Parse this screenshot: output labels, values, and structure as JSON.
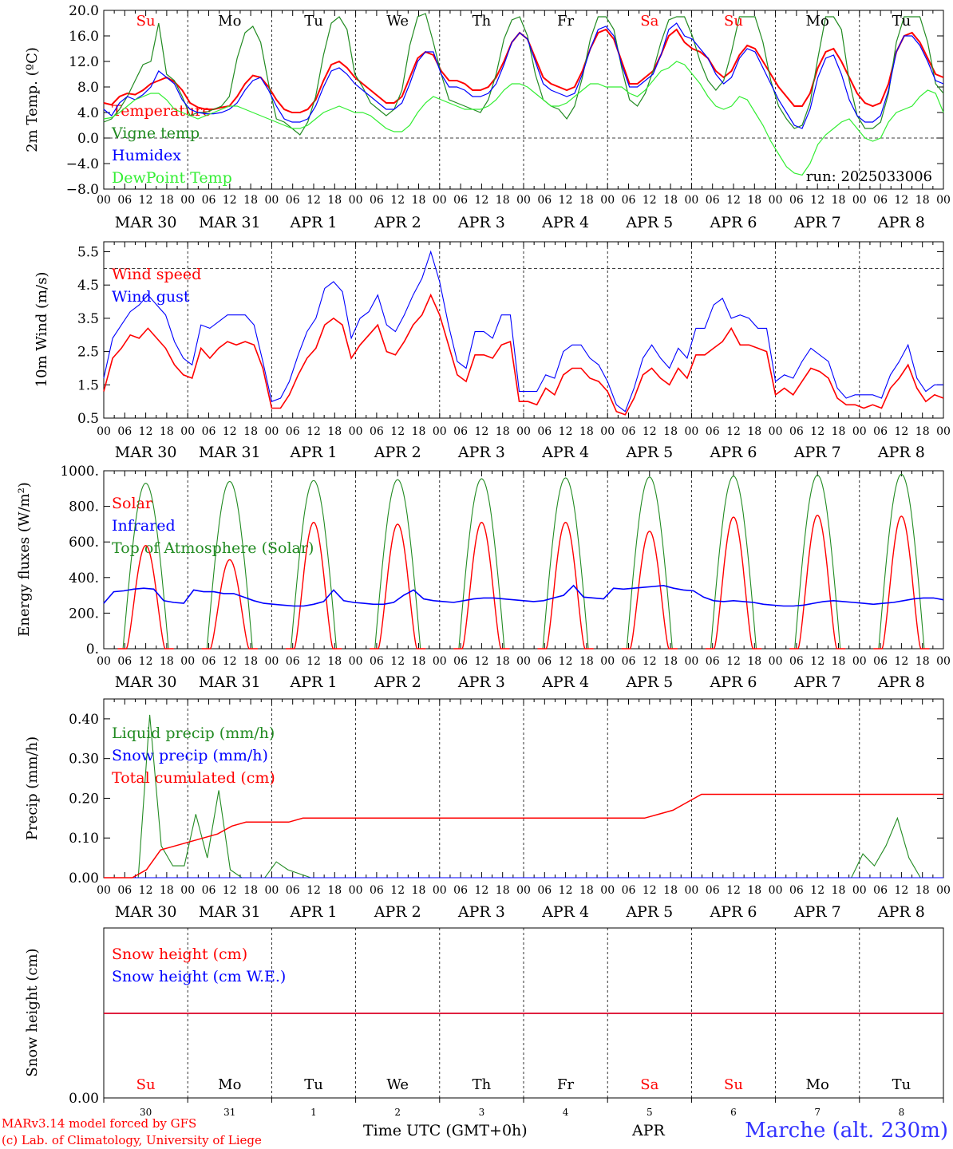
{
  "chart_data": [
    {
      "type": "line",
      "ylabel": "2m Temp. (ºC)",
      "ylim": [
        -8,
        20
      ],
      "yticks": [
        "20.0",
        "16.0",
        "12.0",
        "8.0",
        "4.0",
        "0.0",
        "−4.0",
        "−8.0"
      ],
      "x": "hours since MAR 30 00 UTC (3-hourly)",
      "dashed_line_y": 0,
      "run_label": "run: 2025033006",
      "series": [
        {
          "name": "Temperature",
          "color": "#ff0000",
          "values": [
            5.5,
            5.2,
            6.5,
            7.0,
            6.8,
            7.5,
            8.5,
            9.0,
            9.5,
            8.8,
            7.5,
            5.5,
            4.8,
            4.5,
            4.5,
            4.8,
            5.0,
            6.5,
            8.5,
            9.8,
            9.5,
            8.0,
            6.0,
            4.5,
            4.0,
            4.0,
            4.5,
            6.0,
            9.0,
            11.5,
            12.0,
            11.0,
            9.5,
            8.5,
            7.5,
            6.5,
            5.5,
            5.5,
            6.5,
            9.5,
            12.5,
            13.5,
            13.0,
            10.5,
            9.0,
            9.0,
            8.5,
            7.5,
            7.5,
            8.0,
            9.5,
            12.0,
            15.0,
            16.5,
            15.5,
            12.5,
            9.5,
            8.5,
            8.0,
            7.5,
            8.0,
            10.5,
            14.0,
            16.5,
            17.0,
            15.5,
            12.0,
            8.5,
            8.5,
            9.5,
            10.5,
            13.0,
            16.0,
            17.0,
            15.0,
            14.0,
            13.5,
            12.5,
            10.5,
            9.5,
            10.5,
            13.0,
            14.5,
            14.0,
            12.0,
            10.0,
            8.0,
            6.5,
            5.0,
            5.0,
            7.0,
            11.0,
            13.5,
            14.0,
            12.0,
            9.5,
            7.0,
            5.5,
            5.0,
            5.5,
            8.5,
            13.5,
            16.0,
            16.5,
            15.0,
            12.5,
            10.0,
            9.5
          ]
        },
        {
          "name": "Vigne temp",
          "color": "#228b22",
          "values": [
            2.5,
            3.0,
            4.5,
            6.5,
            9.0,
            11.5,
            12.0,
            18.0,
            10.0,
            9.0,
            6.5,
            3.5,
            4.0,
            4.0,
            4.5,
            5.0,
            6.5,
            12.5,
            16.5,
            17.5,
            15.0,
            8.5,
            3.0,
            2.5,
            1.5,
            0.5,
            2.5,
            6.5,
            13.0,
            18.0,
            19.0,
            17.0,
            10.0,
            8.0,
            5.5,
            4.5,
            3.5,
            4.5,
            7.5,
            14.5,
            19.0,
            19.5,
            15.0,
            10.0,
            6.0,
            5.5,
            5.0,
            4.5,
            4.0,
            6.0,
            10.0,
            15.5,
            18.5,
            19.0,
            16.0,
            10.0,
            6.0,
            5.0,
            4.5,
            3.0,
            5.0,
            9.5,
            15.5,
            19.0,
            19.0,
            17.0,
            11.0,
            6.0,
            5.0,
            7.0,
            10.5,
            15.0,
            18.5,
            19.0,
            19.0,
            16.0,
            12.0,
            9.0,
            7.5,
            9.0,
            13.5,
            19.0,
            19.0,
            19.0,
            15.0,
            9.0,
            5.0,
            3.0,
            1.5,
            2.0,
            5.5,
            12.5,
            19.0,
            19.0,
            17.0,
            9.0,
            3.5,
            1.5,
            1.5,
            2.5,
            7.0,
            15.0,
            19.0,
            19.0,
            19.0,
            15.0,
            8.5,
            7.0
          ]
        },
        {
          "name": "Humidex",
          "color": "#0000ff",
          "values": [
            4.5,
            3.5,
            5.5,
            6.5,
            6.0,
            6.8,
            8.0,
            10.5,
            9.5,
            8.5,
            6.0,
            4.5,
            4.0,
            3.8,
            3.8,
            4.0,
            4.5,
            5.5,
            7.5,
            9.0,
            9.5,
            7.5,
            5.0,
            3.0,
            2.5,
            2.5,
            3.0,
            5.0,
            8.0,
            10.5,
            11.0,
            10.0,
            8.5,
            7.5,
            6.5,
            5.5,
            4.5,
            4.5,
            5.5,
            8.5,
            12.0,
            13.5,
            13.5,
            10.0,
            8.0,
            8.0,
            7.5,
            6.5,
            6.5,
            7.0,
            8.5,
            11.5,
            15.0,
            16.5,
            15.5,
            12.0,
            8.5,
            7.5,
            7.0,
            6.5,
            7.0,
            10.0,
            14.0,
            17.0,
            17.5,
            16.0,
            11.5,
            8.0,
            8.0,
            9.0,
            10.0,
            13.0,
            17.0,
            18.0,
            16.0,
            15.5,
            14.0,
            12.5,
            10.0,
            8.5,
            9.5,
            12.5,
            14.0,
            13.5,
            11.0,
            8.5,
            6.0,
            4.0,
            2.0,
            1.5,
            4.5,
            9.5,
            12.5,
            13.0,
            10.0,
            6.0,
            3.5,
            2.5,
            2.5,
            3.5,
            7.5,
            13.5,
            16.0,
            16.0,
            14.5,
            12.0,
            9.0,
            8.5
          ]
        },
        {
          "name": "DewPoint Temp",
          "color": "#33ee33",
          "values": [
            3.0,
            3.2,
            4.0,
            5.0,
            6.0,
            6.5,
            7.0,
            7.0,
            6.0,
            4.5,
            4.0,
            3.5,
            3.0,
            3.5,
            4.0,
            4.5,
            5.0,
            5.0,
            4.5,
            4.0,
            3.5,
            3.0,
            2.5,
            2.0,
            1.5,
            1.5,
            2.0,
            3.0,
            4.0,
            4.5,
            5.0,
            4.5,
            4.0,
            4.0,
            3.5,
            2.5,
            1.5,
            1.0,
            1.0,
            2.0,
            4.0,
            5.5,
            6.5,
            6.0,
            5.5,
            5.0,
            4.5,
            4.5,
            4.5,
            5.0,
            6.0,
            7.5,
            8.5,
            8.5,
            8.0,
            7.0,
            6.0,
            5.0,
            5.0,
            5.5,
            6.5,
            7.5,
            8.5,
            8.5,
            8.0,
            8.0,
            8.0,
            7.0,
            6.5,
            7.5,
            9.0,
            10.5,
            11.0,
            12.0,
            11.5,
            10.0,
            8.5,
            6.5,
            5.0,
            4.5,
            5.0,
            6.5,
            6.0,
            4.0,
            2.0,
            -0.5,
            -2.5,
            -4.5,
            -5.5,
            -5.8,
            -4.0,
            -1.0,
            0.5,
            1.5,
            2.5,
            3.0,
            1.5,
            0.0,
            -0.5,
            0.0,
            2.5,
            4.0,
            4.5,
            5.0,
            6.5,
            7.5,
            7.0,
            4.0
          ]
        }
      ]
    },
    {
      "type": "line",
      "ylabel": "10m Wind (m/s)",
      "ylim": [
        0.5,
        5.8
      ],
      "yticks": [
        "5.5",
        "4.5",
        "3.5",
        "2.5",
        "1.5",
        "0.5"
      ],
      "dashed_line_y": 5.0,
      "series": [
        {
          "name": "Wind speed",
          "color": "#ff0000",
          "values": [
            1.3,
            2.3,
            2.6,
            3.0,
            2.9,
            3.2,
            2.9,
            2.6,
            2.1,
            1.8,
            1.7,
            2.6,
            2.3,
            2.6,
            2.8,
            2.7,
            2.8,
            2.7,
            2.0,
            0.8,
            0.8,
            1.2,
            1.8,
            2.3,
            2.6,
            3.3,
            3.5,
            3.3,
            2.3,
            2.7,
            3.0,
            3.3,
            2.5,
            2.4,
            2.8,
            3.3,
            3.6,
            4.2,
            3.6,
            2.7,
            1.8,
            1.6,
            2.4,
            2.4,
            2.3,
            2.7,
            2.8,
            1.0,
            1.0,
            0.9,
            1.4,
            1.2,
            1.8,
            2.0,
            2.0,
            1.7,
            1.6,
            1.3,
            0.7,
            0.6,
            1.1,
            1.8,
            2.0,
            1.7,
            1.5,
            2.0,
            1.7,
            2.4,
            2.4,
            2.6,
            2.8,
            3.2,
            2.7,
            2.7,
            2.6,
            2.5,
            1.2,
            1.4,
            1.2,
            1.6,
            2.0,
            1.9,
            1.7,
            1.1,
            0.9,
            0.9,
            0.8,
            0.9,
            0.8,
            1.4,
            1.7,
            2.1,
            1.4,
            1.0,
            1.2,
            1.1
          ]
        },
        {
          "name": "Wind gust",
          "color": "#0000ff",
          "values": [
            1.7,
            2.9,
            3.3,
            3.7,
            3.9,
            4.2,
            3.9,
            3.6,
            2.8,
            2.3,
            2.1,
            3.3,
            3.2,
            3.4,
            3.6,
            3.6,
            3.6,
            3.3,
            2.2,
            1.0,
            1.1,
            1.6,
            2.4,
            3.1,
            3.5,
            4.4,
            4.6,
            4.3,
            2.9,
            3.5,
            3.7,
            4.2,
            3.3,
            3.1,
            3.6,
            4.2,
            4.7,
            5.5,
            4.6,
            3.3,
            2.2,
            2.0,
            3.1,
            3.1,
            2.9,
            3.6,
            3.6,
            1.3,
            1.3,
            1.3,
            1.8,
            1.7,
            2.5,
            2.7,
            2.7,
            2.3,
            2.1,
            1.6,
            0.9,
            0.7,
            1.4,
            2.3,
            2.7,
            2.3,
            2.0,
            2.6,
            2.3,
            3.2,
            3.2,
            3.9,
            4.1,
            3.5,
            3.6,
            3.5,
            3.2,
            3.2,
            1.6,
            1.8,
            1.7,
            2.2,
            2.6,
            2.4,
            2.2,
            1.4,
            1.1,
            1.2,
            1.2,
            1.2,
            1.1,
            1.8,
            2.2,
            2.7,
            1.7,
            1.3,
            1.5,
            1.5
          ]
        }
      ]
    },
    {
      "type": "line",
      "ylabel": "Energy fluxes (W/m²)",
      "ylim": [
        0,
        1000
      ],
      "yticks": [
        "1000.",
        "800.",
        "600.",
        "400.",
        "200.",
        "0."
      ],
      "series": [
        {
          "name": "Solar",
          "color": "#ff0000",
          "peaks_by_day": [
            580,
            500,
            710,
            700,
            710,
            710,
            660,
            740,
            750,
            745
          ]
        },
        {
          "name": "Infrared",
          "color": "#0000ff",
          "values": [
            255,
            320,
            325,
            335,
            340,
            335,
            270,
            260,
            255,
            330,
            320,
            320,
            310,
            310,
            290,
            270,
            255,
            250,
            245,
            240,
            240,
            250,
            265,
            330,
            270,
            260,
            255,
            250,
            250,
            260,
            300,
            330,
            280,
            270,
            265,
            260,
            270,
            280,
            285,
            285,
            280,
            275,
            270,
            265,
            270,
            285,
            300,
            355,
            290,
            285,
            280,
            340,
            335,
            340,
            345,
            350,
            355,
            340,
            330,
            325,
            290,
            270,
            265,
            270,
            265,
            260,
            250,
            245,
            240,
            240,
            245,
            255,
            265,
            270,
            265,
            260,
            255,
            250,
            255,
            260,
            270,
            280,
            285,
            285,
            275
          ]
        },
        {
          "name": "Top of Atmosphere (Solar)",
          "color": "#228b22",
          "peaks_by_day": [
            930,
            940,
            945,
            950,
            955,
            960,
            965,
            970,
            975,
            980
          ]
        }
      ]
    },
    {
      "type": "line",
      "ylabel": "Precip (mm/h)",
      "ylim": [
        0,
        0.45
      ],
      "yticks": [
        "0.40",
        "0.30",
        "0.20",
        "0.10",
        "0.00"
      ],
      "series": [
        {
          "name": "Liquid precip (mm/h)",
          "color": "#228b22",
          "values": [
            0,
            0,
            0,
            0,
            0.41,
            0.08,
            0.03,
            0.03,
            0.16,
            0.05,
            0.22,
            0.02,
            0,
            0,
            0,
            0.04,
            0.02,
            0.01,
            0,
            0,
            0,
            0,
            0,
            0,
            0,
            0,
            0,
            0,
            0,
            0,
            0,
            0,
            0,
            0,
            0,
            0,
            0,
            0,
            0,
            0,
            0,
            0,
            0,
            0,
            0,
            0,
            0,
            0,
            0,
            0,
            0,
            0,
            0,
            0,
            0,
            0,
            0,
            0,
            0,
            0,
            0,
            0,
            0,
            0,
            0,
            0,
            0.06,
            0.03,
            0.08,
            0.15,
            0.05,
            0,
            0,
            0
          ]
        },
        {
          "name": "Snow precip (mm/h)",
          "color": "#0000ff",
          "values": [
            0
          ]
        },
        {
          "name": "Total cumulated (cm)",
          "color": "#ff0000",
          "values": [
            0,
            0,
            0,
            0.02,
            0.07,
            0.08,
            0.09,
            0.1,
            0.11,
            0.13,
            0.14,
            0.14,
            0.14,
            0.14,
            0.15,
            0.15,
            0.15,
            0.15,
            0.15,
            0.15,
            0.15,
            0.15,
            0.15,
            0.15,
            0.15,
            0.15,
            0.15,
            0.15,
            0.15,
            0.15,
            0.15,
            0.15,
            0.15,
            0.15,
            0.15,
            0.15,
            0.15,
            0.15,
            0.15,
            0.16,
            0.17,
            0.19,
            0.21,
            0.21,
            0.21,
            0.21,
            0.21,
            0.21,
            0.21,
            0.21,
            0.21,
            0.21,
            0.21,
            0.21,
            0.21,
            0.21,
            0.21,
            0.21,
            0.21,
            0.21
          ]
        }
      ]
    },
    {
      "type": "line",
      "ylabel": "Snow height (cm)",
      "ylim": [
        0,
        1
      ],
      "yticks": [
        "0.00"
      ],
      "series": [
        {
          "name": "Snow height (cm)",
          "color": "#ff0000",
          "values": [
            0,
            0
          ]
        },
        {
          "name": "Snow height (cm W.E.)",
          "color": "#0000ff",
          "values": [
            0,
            0
          ]
        }
      ]
    }
  ],
  "axis": {
    "hour_ticks": [
      "00",
      "06",
      "12",
      "18"
    ],
    "day_labels": [
      "MAR 30",
      "MAR 31",
      "APR  1",
      "APR  2",
      "APR  3",
      "APR  4",
      "APR  5",
      "APR  6",
      "APR  7",
      "APR  8"
    ],
    "last_tick": "00",
    "weekdays": [
      "Su",
      "Mo",
      "Tu",
      "We",
      "Th",
      "Fr",
      "Sa",
      "Su",
      "Mo",
      "Tu"
    ],
    "weekday_colors": [
      "#ff0000",
      "#000000",
      "#000000",
      "#000000",
      "#000000",
      "#000000",
      "#ff0000",
      "#ff0000",
      "#000000",
      "#000000"
    ],
    "day_numbers": [
      "30",
      "31",
      "1",
      "2",
      "3",
      "4",
      "5",
      "6",
      "7",
      "8"
    ],
    "month_label": "APR",
    "time_label": "Time UTC (GMT+0h)"
  },
  "footer": {
    "credit_line1": "MARv3.14 model forced by GFS",
    "credit_line2": "(c) Lab. of Climatology, University of Liege",
    "station": "Marche (alt. 230m)"
  }
}
